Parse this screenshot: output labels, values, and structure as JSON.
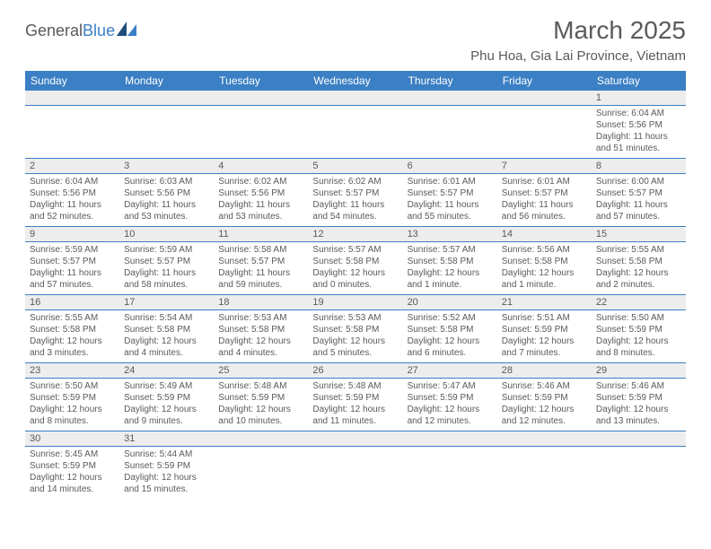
{
  "logo": {
    "text1": "General",
    "text2": "Blue"
  },
  "title": "March 2025",
  "location": "Phu Hoa, Gia Lai Province, Vietnam",
  "colors": {
    "header_bg": "#3b7fc4",
    "header_text": "#ffffff",
    "text": "#5a5a5a",
    "daynum_bg": "#ededed",
    "rule": "#3b7fc4",
    "page_bg": "#ffffff"
  },
  "typography": {
    "title_fontsize": 28,
    "location_fontsize": 15,
    "header_fontsize": 12,
    "daynum_fontsize": 11,
    "body_fontsize": 10
  },
  "layout": {
    "columns": 7,
    "rows": 6
  },
  "weekdays": [
    "Sunday",
    "Monday",
    "Tuesday",
    "Wednesday",
    "Thursday",
    "Friday",
    "Saturday"
  ],
  "weeks": [
    [
      null,
      null,
      null,
      null,
      null,
      null,
      {
        "day": "1",
        "sunrise": "Sunrise: 6:04 AM",
        "sunset": "Sunset: 5:56 PM",
        "daylight": "Daylight: 11 hours and 51 minutes."
      }
    ],
    [
      {
        "day": "2",
        "sunrise": "Sunrise: 6:04 AM",
        "sunset": "Sunset: 5:56 PM",
        "daylight": "Daylight: 11 hours and 52 minutes."
      },
      {
        "day": "3",
        "sunrise": "Sunrise: 6:03 AM",
        "sunset": "Sunset: 5:56 PM",
        "daylight": "Daylight: 11 hours and 53 minutes."
      },
      {
        "day": "4",
        "sunrise": "Sunrise: 6:02 AM",
        "sunset": "Sunset: 5:56 PM",
        "daylight": "Daylight: 11 hours and 53 minutes."
      },
      {
        "day": "5",
        "sunrise": "Sunrise: 6:02 AM",
        "sunset": "Sunset: 5:57 PM",
        "daylight": "Daylight: 11 hours and 54 minutes."
      },
      {
        "day": "6",
        "sunrise": "Sunrise: 6:01 AM",
        "sunset": "Sunset: 5:57 PM",
        "daylight": "Daylight: 11 hours and 55 minutes."
      },
      {
        "day": "7",
        "sunrise": "Sunrise: 6:01 AM",
        "sunset": "Sunset: 5:57 PM",
        "daylight": "Daylight: 11 hours and 56 minutes."
      },
      {
        "day": "8",
        "sunrise": "Sunrise: 6:00 AM",
        "sunset": "Sunset: 5:57 PM",
        "daylight": "Daylight: 11 hours and 57 minutes."
      }
    ],
    [
      {
        "day": "9",
        "sunrise": "Sunrise: 5:59 AM",
        "sunset": "Sunset: 5:57 PM",
        "daylight": "Daylight: 11 hours and 57 minutes."
      },
      {
        "day": "10",
        "sunrise": "Sunrise: 5:59 AM",
        "sunset": "Sunset: 5:57 PM",
        "daylight": "Daylight: 11 hours and 58 minutes."
      },
      {
        "day": "11",
        "sunrise": "Sunrise: 5:58 AM",
        "sunset": "Sunset: 5:57 PM",
        "daylight": "Daylight: 11 hours and 59 minutes."
      },
      {
        "day": "12",
        "sunrise": "Sunrise: 5:57 AM",
        "sunset": "Sunset: 5:58 PM",
        "daylight": "Daylight: 12 hours and 0 minutes."
      },
      {
        "day": "13",
        "sunrise": "Sunrise: 5:57 AM",
        "sunset": "Sunset: 5:58 PM",
        "daylight": "Daylight: 12 hours and 1 minute."
      },
      {
        "day": "14",
        "sunrise": "Sunrise: 5:56 AM",
        "sunset": "Sunset: 5:58 PM",
        "daylight": "Daylight: 12 hours and 1 minute."
      },
      {
        "day": "15",
        "sunrise": "Sunrise: 5:55 AM",
        "sunset": "Sunset: 5:58 PM",
        "daylight": "Daylight: 12 hours and 2 minutes."
      }
    ],
    [
      {
        "day": "16",
        "sunrise": "Sunrise: 5:55 AM",
        "sunset": "Sunset: 5:58 PM",
        "daylight": "Daylight: 12 hours and 3 minutes."
      },
      {
        "day": "17",
        "sunrise": "Sunrise: 5:54 AM",
        "sunset": "Sunset: 5:58 PM",
        "daylight": "Daylight: 12 hours and 4 minutes."
      },
      {
        "day": "18",
        "sunrise": "Sunrise: 5:53 AM",
        "sunset": "Sunset: 5:58 PM",
        "daylight": "Daylight: 12 hours and 4 minutes."
      },
      {
        "day": "19",
        "sunrise": "Sunrise: 5:53 AM",
        "sunset": "Sunset: 5:58 PM",
        "daylight": "Daylight: 12 hours and 5 minutes."
      },
      {
        "day": "20",
        "sunrise": "Sunrise: 5:52 AM",
        "sunset": "Sunset: 5:58 PM",
        "daylight": "Daylight: 12 hours and 6 minutes."
      },
      {
        "day": "21",
        "sunrise": "Sunrise: 5:51 AM",
        "sunset": "Sunset: 5:59 PM",
        "daylight": "Daylight: 12 hours and 7 minutes."
      },
      {
        "day": "22",
        "sunrise": "Sunrise: 5:50 AM",
        "sunset": "Sunset: 5:59 PM",
        "daylight": "Daylight: 12 hours and 8 minutes."
      }
    ],
    [
      {
        "day": "23",
        "sunrise": "Sunrise: 5:50 AM",
        "sunset": "Sunset: 5:59 PM",
        "daylight": "Daylight: 12 hours and 8 minutes."
      },
      {
        "day": "24",
        "sunrise": "Sunrise: 5:49 AM",
        "sunset": "Sunset: 5:59 PM",
        "daylight": "Daylight: 12 hours and 9 minutes."
      },
      {
        "day": "25",
        "sunrise": "Sunrise: 5:48 AM",
        "sunset": "Sunset: 5:59 PM",
        "daylight": "Daylight: 12 hours and 10 minutes."
      },
      {
        "day": "26",
        "sunrise": "Sunrise: 5:48 AM",
        "sunset": "Sunset: 5:59 PM",
        "daylight": "Daylight: 12 hours and 11 minutes."
      },
      {
        "day": "27",
        "sunrise": "Sunrise: 5:47 AM",
        "sunset": "Sunset: 5:59 PM",
        "daylight": "Daylight: 12 hours and 12 minutes."
      },
      {
        "day": "28",
        "sunrise": "Sunrise: 5:46 AM",
        "sunset": "Sunset: 5:59 PM",
        "daylight": "Daylight: 12 hours and 12 minutes."
      },
      {
        "day": "29",
        "sunrise": "Sunrise: 5:46 AM",
        "sunset": "Sunset: 5:59 PM",
        "daylight": "Daylight: 12 hours and 13 minutes."
      }
    ],
    [
      {
        "day": "30",
        "sunrise": "Sunrise: 5:45 AM",
        "sunset": "Sunset: 5:59 PM",
        "daylight": "Daylight: 12 hours and 14 minutes."
      },
      {
        "day": "31",
        "sunrise": "Sunrise: 5:44 AM",
        "sunset": "Sunset: 5:59 PM",
        "daylight": "Daylight: 12 hours and 15 minutes."
      },
      null,
      null,
      null,
      null,
      null
    ]
  ]
}
